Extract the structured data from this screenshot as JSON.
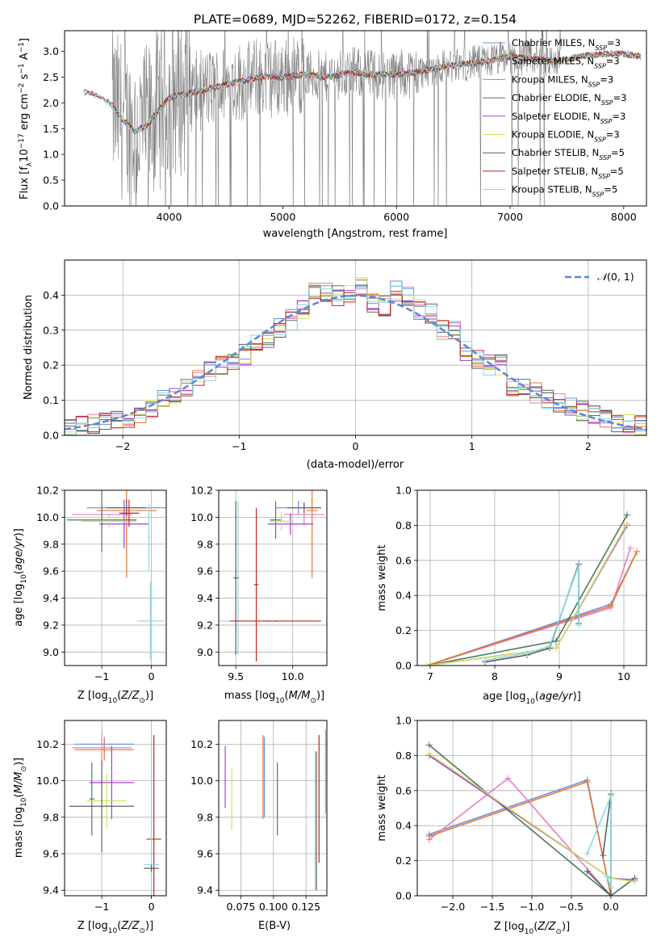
{
  "figure": {
    "title": "PLATE=0689, MJD=52262, FIBERID=0172, z=0.154"
  },
  "colors": {
    "Chabrier MILES": "#6a8fe0",
    "Salpeter MILES": "#e87fc0",
    "Kroupa MILES": "#e8782c",
    "Chabrier ELODIE": "#4d7a5a",
    "Salpeter ELODIE": "#a63fd6",
    "Kroupa ELODIE": "#cfe05a",
    "Chabrier STELIB": "#5f5f5f",
    "Salpeter STELIB": "#c0281c",
    "Kroupa STELIB": "#8ad8e0",
    "data": "#808080",
    "normal": "#5b86d6",
    "grid": "#b0b0b0"
  },
  "chart_data": [
    {
      "id": "spectrum",
      "type": "line",
      "title": "PLATE=0689, MJD=52262, FIBERID=0172, z=0.154",
      "xlabel": "wavelength [Angstrom, rest frame]",
      "ylabel": "Flux [f_λ 10^-17 erg cm^-2 s^-1 A^-1]",
      "xlim": [
        3080,
        8200
      ],
      "ylim": [
        0,
        3.4
      ],
      "xticks": [
        4000,
        5000,
        6000,
        7000,
        8000
      ],
      "yticks": [
        0.0,
        0.5,
        1.0,
        1.5,
        2.0,
        2.5,
        3.0
      ],
      "grid": false,
      "legend_position": "top-right",
      "legend": [
        "Chabrier MILES, N_SSP=3",
        "Salpeter MILES, N_SSP=3",
        "Kroupa MILES, N_SSP=3",
        "Chabrier ELODIE, N_SSP=3",
        "Salpeter ELODIE, N_SSP=3",
        "Kroupa ELODIE, N_SSP=3",
        "Chabrier STELIB, N_SSP=5",
        "Salpeter STELIB, N_SSP=5",
        "Kroupa STELIB, N_SSP=5"
      ],
      "model_x": [
        3300,
        3400,
        3500,
        3600,
        3700,
        3800,
        3900,
        4000,
        4200,
        4400,
        4600,
        4800,
        5000,
        5200,
        5400,
        5600,
        5800,
        6000,
        6200,
        6400,
        6600,
        6800,
        7000,
        7200,
        7400,
        7600,
        7800,
        8000,
        8150
      ],
      "model_y": [
        2.2,
        2.1,
        1.95,
        1.65,
        1.45,
        1.55,
        1.85,
        2.1,
        2.2,
        2.3,
        2.4,
        2.5,
        2.5,
        2.55,
        2.5,
        2.6,
        2.55,
        2.55,
        2.6,
        2.7,
        2.75,
        2.8,
        2.9,
        2.85,
        2.8,
        2.9,
        2.95,
        2.95,
        2.9
      ],
      "model_x_range": [
        3250,
        8150
      ],
      "data_x_range": [
        3500,
        7450
      ]
    },
    {
      "id": "residuals",
      "type": "step",
      "xlabel": "(data-model)/error",
      "ylabel": "Normed distribution",
      "xlim": [
        -2.5,
        2.5
      ],
      "ylim": [
        0,
        0.5
      ],
      "xticks": [
        -2,
        -1,
        0,
        1,
        2
      ],
      "yticks": [
        0.0,
        0.1,
        0.2,
        0.3,
        0.4
      ],
      "grid": true,
      "legend_position": "top-right",
      "legend": [
        "N(0,1)"
      ],
      "bins": [
        -2.5,
        -2.4,
        -2.3,
        -2.2,
        -2.1,
        -2.0,
        -1.9,
        -1.8,
        -1.7,
        -1.6,
        -1.5,
        -1.4,
        -1.3,
        -1.2,
        -1.1,
        -1.0,
        -0.9,
        -0.8,
        -0.7,
        -0.6,
        -0.5,
        -0.4,
        -0.3,
        -0.2,
        -0.1,
        0.0,
        0.1,
        0.2,
        0.3,
        0.4,
        0.5,
        0.6,
        0.7,
        0.8,
        0.9,
        1.0,
        1.1,
        1.2,
        1.3,
        1.4,
        1.5,
        1.6,
        1.7,
        1.8,
        1.9,
        2.0,
        2.1,
        2.2,
        2.3,
        2.4,
        2.5
      ],
      "base_values": [
        0.02,
        0.03,
        0.03,
        0.04,
        0.05,
        0.05,
        0.06,
        0.08,
        0.1,
        0.12,
        0.14,
        0.17,
        0.18,
        0.2,
        0.21,
        0.23,
        0.27,
        0.28,
        0.31,
        0.33,
        0.36,
        0.42,
        0.41,
        0.4,
        0.4,
        0.42,
        0.38,
        0.37,
        0.41,
        0.4,
        0.36,
        0.35,
        0.3,
        0.3,
        0.24,
        0.22,
        0.2,
        0.2,
        0.14,
        0.14,
        0.12,
        0.1,
        0.09,
        0.08,
        0.07,
        0.06,
        0.05,
        0.04,
        0.03,
        0.03
      ],
      "normal_curve": {
        "mean": 0,
        "sigma": 1
      }
    },
    {
      "id": "age-vs-Z",
      "type": "errorbar",
      "xlabel": "Z [log10(Z/Z_sun)]",
      "ylabel": "age [log10(age/yr)]",
      "xlim": [
        -1.75,
        0.3
      ],
      "ylim": [
        8.9,
        10.2
      ],
      "xticks": [
        -1,
        0
      ],
      "yticks": [
        9.0,
        9.2,
        9.4,
        9.6,
        9.8,
        10.0,
        10.2
      ],
      "grid": true,
      "points": [
        {
          "series": "Chabrier MILES",
          "x": -0.5,
          "xerr": 0.8,
          "y": 10.07,
          "yerr": 0.05
        },
        {
          "series": "Salpeter MILES",
          "x": -1.0,
          "xerr": 0.6,
          "y": 10.02,
          "yerr": 0.1
        },
        {
          "series": "Kroupa MILES",
          "x": -0.5,
          "xerr": 0.6,
          "y": 10.05,
          "yerr": 0.5
        },
        {
          "series": "Chabrier ELODIE",
          "x": -1.0,
          "xerr": 0.7,
          "y": 9.98,
          "yerr": 0.24
        },
        {
          "series": "Salpeter ELODIE",
          "x": -0.55,
          "xerr": 0.5,
          "y": 9.95,
          "yerr": 0.18
        },
        {
          "series": "Kroupa ELODIE",
          "x": -0.85,
          "xerr": 0.55,
          "y": 9.97,
          "yerr": 0.05
        },
        {
          "series": "Chabrier STELIB",
          "x": -0.5,
          "xerr": 0.4,
          "y": 10.07,
          "yerr": 0.06
        },
        {
          "series": "Salpeter STELIB",
          "x": -0.45,
          "xerr": 0.2,
          "y": 10.03,
          "yerr": 0.1
        },
        {
          "series": "Kroupa STELIB",
          "x": -0.02,
          "xerr": 0.27,
          "y": 9.23,
          "yerr": 0.29
        },
        {
          "series": "Kroupa STELIB",
          "x": -0.05,
          "xerr": 0.02,
          "y": 9.85,
          "yerr": 0.25
        }
      ]
    },
    {
      "id": "age-vs-mass",
      "type": "errorbar",
      "xlabel": "mass [log10(M/M_sun)]",
      "ylabel": "",
      "xlim": [
        9.35,
        10.3
      ],
      "ylim": [
        8.9,
        10.2
      ],
      "xticks": [
        9.5,
        10.0
      ],
      "yticks": [
        9.0,
        9.2,
        9.4,
        9.6,
        9.8,
        10.0,
        10.2
      ],
      "grid": true,
      "points": [
        {
          "series": "Chabrier MILES",
          "x": 10.05,
          "xerr": 0.2,
          "y": 10.07,
          "yerr": 0.05
        },
        {
          "series": "Salpeter MILES",
          "x": 10.1,
          "xerr": 0.18,
          "y": 10.02,
          "yerr": 0.08
        },
        {
          "series": "Kroupa MILES",
          "x": 10.17,
          "xerr": 0.05,
          "y": 10.05,
          "yerr": 0.5
        },
        {
          "series": "Chabrier ELODIE",
          "x": 9.85,
          "xerr": 0.05,
          "y": 9.98,
          "yerr": 0.14
        },
        {
          "series": "Salpeter ELODIE",
          "x": 9.98,
          "xerr": 0.2,
          "y": 9.95,
          "yerr": 0.08
        },
        {
          "series": "Kroupa ELODIE",
          "x": 9.9,
          "xerr": 0.1,
          "y": 9.97,
          "yerr": 0.07
        },
        {
          "series": "Chabrier STELIB",
          "x": 10.1,
          "xerr": 0.15,
          "y": 10.07,
          "yerr": 0.04
        },
        {
          "series": "Salpeter STELIB",
          "x": 9.68,
          "xerr": 0.02,
          "y": 9.5,
          "yerr": 0.57
        },
        {
          "series": "Kroupa STELIB",
          "x": 9.52,
          "xerr": 0.02,
          "y": 9.55,
          "yerr": 0.57
        },
        {
          "series": "Chabrier STELIB",
          "x": 9.5,
          "xerr": 0.02,
          "y": 9.55,
          "yerr": 0.57
        },
        {
          "series": "Kroupa STELIB",
          "x": 9.75,
          "xerr": 0.45,
          "y": 9.23,
          "yerr": 0.005
        },
        {
          "series": "Salpeter STELIB",
          "x": 9.85,
          "xerr": 0.4,
          "y": 9.23,
          "yerr": 0.005
        }
      ]
    },
    {
      "id": "weight-vs-age",
      "type": "line",
      "xlabel": "age [log10(age/yr)]",
      "ylabel": "mass weight",
      "xlim": [
        6.8,
        10.35
      ],
      "ylim": [
        0,
        1
      ],
      "xticks": [
        7,
        8,
        9,
        10
      ],
      "yticks": [
        0.0,
        0.2,
        0.4,
        0.6,
        0.8,
        1.0
      ],
      "grid": true,
      "series": [
        {
          "series": "Chabrier MILES",
          "x": [
            6.95,
            9.8,
            10.2
          ],
          "y": [
            0.0,
            0.35,
            0.65
          ]
        },
        {
          "series": "Salpeter MILES",
          "x": [
            6.95,
            9.8,
            10.1
          ],
          "y": [
            0.0,
            0.33,
            0.67
          ]
        },
        {
          "series": "Kroupa MILES",
          "x": [
            6.95,
            9.8,
            10.2
          ],
          "y": [
            0.0,
            0.34,
            0.65
          ]
        },
        {
          "series": "Chabrier ELODIE",
          "x": [
            6.95,
            8.95,
            10.05
          ],
          "y": [
            0.0,
            0.14,
            0.86
          ]
        },
        {
          "series": "Salpeter ELODIE",
          "x": [
            6.95,
            8.95,
            10.05
          ],
          "y": [
            0.0,
            0.1,
            0.8
          ]
        },
        {
          "series": "Kroupa ELODIE",
          "x": [
            6.95,
            8.95,
            10.05
          ],
          "y": [
            0.0,
            0.1,
            0.81
          ]
        },
        {
          "series": "Chabrier STELIB",
          "x": [
            7.85,
            8.5,
            8.85,
            9.3,
            9.3
          ],
          "y": [
            0.02,
            0.06,
            0.1,
            0.58,
            0.24
          ]
        },
        {
          "series": "Kroupa STELIB",
          "x": [
            7.85,
            8.5,
            8.85,
            9.3,
            9.3
          ],
          "y": [
            0.03,
            0.07,
            0.11,
            0.57,
            0.23
          ]
        }
      ]
    },
    {
      "id": "mass-vs-Z",
      "type": "errorbar",
      "xlabel": "Z [log10(Z/Z_sun)]",
      "ylabel": "mass [log10(M/M_sun)]",
      "xlim": [
        -1.75,
        0.3
      ],
      "ylim": [
        9.37,
        10.33
      ],
      "xticks": [
        -1,
        0
      ],
      "yticks": [
        9.4,
        9.6,
        9.8,
        10.0,
        10.2
      ],
      "grid": true,
      "points": [
        {
          "series": "Chabrier MILES",
          "x": -0.95,
          "xerr": 0.6,
          "y": 10.2,
          "yerr": 0.04
        },
        {
          "series": "Salpeter MILES",
          "x": -1.0,
          "xerr": 0.6,
          "y": 10.18,
          "yerr": 0.1
        },
        {
          "series": "Kroupa MILES",
          "x": -0.95,
          "xerr": 0.6,
          "y": 10.17,
          "yerr": 0.06
        },
        {
          "series": "Chabrier ELODIE",
          "x": -1.2,
          "xerr": 0.05,
          "y": 9.9,
          "yerr": 0.2
        },
        {
          "series": "Salpeter ELODIE",
          "x": -0.8,
          "xerr": 0.45,
          "y": 9.99,
          "yerr": 0.2
        },
        {
          "series": "Kroupa ELODIE",
          "x": -0.9,
          "xerr": 0.4,
          "y": 9.89,
          "yerr": 0.15
        },
        {
          "series": "Chabrier STELIB",
          "x": -1.0,
          "xerr": 0.65,
          "y": 9.86,
          "yerr": 0.25
        },
        {
          "series": "Salpeter STELIB",
          "x": 0.05,
          "xerr": 0.15,
          "y": 9.68,
          "yerr": 0.57
        },
        {
          "series": "Kroupa STELIB",
          "x": 0.0,
          "xerr": 0.15,
          "y": 9.54,
          "yerr": 0.57
        },
        {
          "series": "Chabrier STELIB",
          "x": 0.0,
          "xerr": 0.15,
          "y": 9.52,
          "yerr": 0.02
        }
      ]
    },
    {
      "id": "mass-vs-EBV",
      "type": "errorbar",
      "xlabel": "E(B-V)",
      "ylabel": "",
      "xlim": [
        0.058,
        0.141
      ],
      "ylim": [
        9.37,
        10.33
      ],
      "xticks": [
        0.075,
        0.1,
        0.125
      ],
      "yticks": [
        9.4,
        9.6,
        9.8,
        10.0,
        10.2
      ],
      "grid": true,
      "points": [
        {
          "series": "Salpeter ELODIE",
          "x": 0.063,
          "y": 10.02,
          "yerr": 0.17
        },
        {
          "series": "Kroupa ELODIE",
          "x": 0.068,
          "y": 9.9,
          "yerr": 0.17
        },
        {
          "series": "Kroupa MILES",
          "x": 0.092,
          "y": 10.02,
          "yerr": 0.23
        },
        {
          "series": "Chabrier MILES",
          "x": 0.093,
          "y": 10.02,
          "yerr": 0.22
        },
        {
          "series": "Chabrier ELODIE",
          "x": 0.103,
          "y": 9.9,
          "yerr": 0.2
        },
        {
          "series": "Kroupa STELIB",
          "x": 0.132,
          "y": 9.78,
          "yerr": 0.38
        },
        {
          "series": "Chabrier STELIB",
          "x": 0.133,
          "y": 9.78,
          "yerr": 0.38
        },
        {
          "series": "Salpeter STELIB",
          "x": 0.135,
          "y": 9.9,
          "yerr": 0.35
        },
        {
          "series": "Salpeter MILES",
          "x": 0.14,
          "y": 10.05,
          "yerr": 0.23
        }
      ]
    },
    {
      "id": "weight-vs-Z",
      "type": "line",
      "xlabel": "Z [log10(Z/Z_sun)]",
      "ylabel": "mass weight",
      "xlim": [
        -2.45,
        0.45
      ],
      "ylim": [
        0,
        1
      ],
      "xticks": [
        -2.0,
        -1.5,
        -1.0,
        -0.5,
        0.0
      ],
      "yticks": [
        0.0,
        0.2,
        0.4,
        0.6,
        0.8,
        1.0
      ],
      "grid": true,
      "series": [
        {
          "series": "Chabrier MILES",
          "x": [
            -2.3,
            -0.3,
            0.0
          ],
          "y": [
            0.35,
            0.66,
            0.0
          ]
        },
        {
          "series": "Salpeter MILES",
          "x": [
            -2.3,
            -1.3,
            0.0,
            0.3
          ],
          "y": [
            0.32,
            0.67,
            0.0,
            0.1
          ]
        },
        {
          "series": "Kroupa MILES",
          "x": [
            -2.3,
            -0.3,
            0.0
          ],
          "y": [
            0.34,
            0.65,
            0.0
          ]
        },
        {
          "series": "Chabrier ELODIE",
          "x": [
            -2.3,
            0.0,
            0.3
          ],
          "y": [
            0.86,
            0.0,
            0.1
          ]
        },
        {
          "series": "Salpeter ELODIE",
          "x": [
            -2.3,
            0.0,
            0.3
          ],
          "y": [
            0.8,
            0.1,
            0.09
          ]
        },
        {
          "series": "Kroupa ELODIE",
          "x": [
            -2.3,
            0.0,
            0.3
          ],
          "y": [
            0.81,
            0.1,
            0.08
          ]
        },
        {
          "series": "Chabrier STELIB",
          "x": [
            -0.3,
            0.0,
            0.0,
            -0.1
          ],
          "y": [
            0.14,
            0.0,
            0.58,
            0.23
          ]
        },
        {
          "series": "Kroupa STELIB",
          "x": [
            -0.3,
            0.0,
            0.0,
            -0.05
          ],
          "y": [
            0.24,
            0.57,
            0.05,
            0.11
          ]
        }
      ]
    }
  ]
}
